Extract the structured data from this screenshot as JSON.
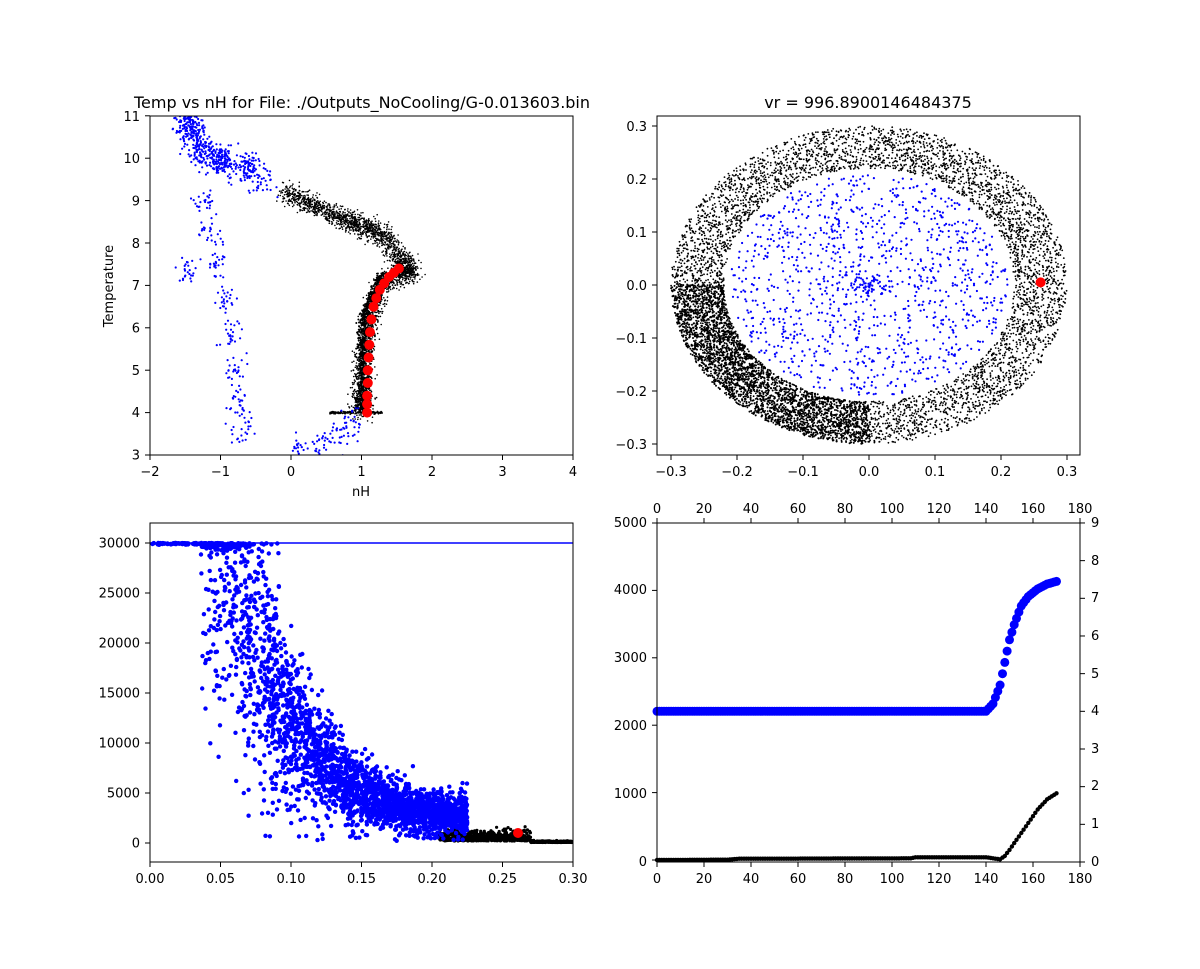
{
  "chart_data": [
    {
      "type": "scatter",
      "title": "Temp vs nH for File: ./Outputs_NoCooling/G-0.013603.bin",
      "xlabel": "nH",
      "ylabel": "Temperature",
      "xlim": [
        -2,
        4
      ],
      "ylim": [
        3,
        11
      ],
      "xticks": [
        "−2",
        "−1",
        "0",
        "1",
        "2",
        "3",
        "4"
      ],
      "yticks": [
        "3",
        "4",
        "5",
        "6",
        "7",
        "8",
        "9",
        "10",
        "11"
      ],
      "series": [
        {
          "color": "#000000",
          "marker": "tiny dots",
          "description_points": [
            [
              -0.1,
              9.2
            ],
            [
              0.3,
              8.9
            ],
            [
              0.7,
              8.6
            ],
            [
              1.0,
              8.4
            ],
            [
              1.3,
              8.2
            ],
            [
              1.55,
              7.6
            ],
            [
              1.7,
              7.3
            ],
            [
              1.3,
              7.1
            ],
            [
              1.15,
              6.5
            ],
            [
              1.05,
              5.5
            ],
            [
              1.0,
              4.5
            ],
            [
              1.0,
              4.0
            ]
          ]
        },
        {
          "color": "#0000ff",
          "marker": "small dots",
          "points": [
            [
              -1.5,
              10.9
            ],
            [
              -1.4,
              10.6
            ],
            [
              -1.3,
              10.2
            ],
            [
              -1.1,
              10.0
            ],
            [
              -0.9,
              9.9
            ],
            [
              -0.6,
              9.8
            ],
            [
              -0.4,
              9.4
            ],
            [
              -1.25,
              9.0
            ],
            [
              -1.15,
              8.3
            ],
            [
              -1.05,
              7.5
            ],
            [
              -0.95,
              6.7
            ],
            [
              -0.85,
              5.9
            ],
            [
              -0.8,
              5.0
            ],
            [
              -0.75,
              4.3
            ],
            [
              -0.7,
              3.6
            ],
            [
              -1.45,
              7.3
            ],
            [
              0.1,
              3.0
            ],
            [
              0.4,
              3.2
            ],
            [
              0.7,
              3.5
            ],
            [
              0.9,
              3.8
            ]
          ]
        },
        {
          "color": "#ff0000",
          "marker": "large dots",
          "points": [
            [
              1.08,
              4.0
            ],
            [
              1.08,
              4.2
            ],
            [
              1.08,
              4.4
            ],
            [
              1.09,
              4.7
            ],
            [
              1.09,
              5.0
            ],
            [
              1.1,
              5.3
            ],
            [
              1.11,
              5.6
            ],
            [
              1.12,
              5.9
            ],
            [
              1.14,
              6.2
            ],
            [
              1.17,
              6.5
            ],
            [
              1.21,
              6.7
            ],
            [
              1.26,
              6.9
            ],
            [
              1.32,
              7.05
            ],
            [
              1.39,
              7.2
            ],
            [
              1.46,
              7.3
            ],
            [
              1.53,
              7.4
            ]
          ]
        }
      ]
    },
    {
      "type": "scatter",
      "title": "vr = 996.8900146484375",
      "xlim": [
        -0.32,
        0.32
      ],
      "ylim": [
        -0.32,
        0.32
      ],
      "xticks": [
        "−0.3",
        "−0.2",
        "−0.1",
        "0.0",
        "0.1",
        "0.2",
        "0.3"
      ],
      "yticks": [
        "−0.3",
        "−0.2",
        "−0.1",
        "0.0",
        "0.1",
        "0.2",
        "0.3"
      ],
      "series": [
        {
          "color": "#000000",
          "shape": "ring",
          "r_inner": 0.22,
          "r_outer": 0.3
        },
        {
          "color": "#0000ff",
          "shape": "disk",
          "r": 0.21
        },
        {
          "color": "#ff0000",
          "points": [
            [
              0.26,
              0.005
            ]
          ]
        }
      ]
    },
    {
      "type": "scatter",
      "xlim": [
        0.0,
        0.3
      ],
      "ylim": [
        -2000,
        32000
      ],
      "xticks": [
        "0.00",
        "0.05",
        "0.10",
        "0.15",
        "0.20",
        "0.25",
        "0.30"
      ],
      "yticks": [
        "0",
        "5000",
        "10000",
        "15000",
        "20000",
        "25000",
        "30000"
      ],
      "hline": {
        "y": 30000,
        "color": "#0000ff"
      },
      "series": [
        {
          "color": "#000000",
          "description": "band near zero across x 0.21–0.30"
        },
        {
          "color": "#0000ff",
          "description": "decay from 30000 at x≈0.04 to ~2000 at x≈0.22"
        },
        {
          "color": "#ff0000",
          "points": [
            [
              0.261,
              1000
            ]
          ]
        }
      ]
    },
    {
      "type": "scatter",
      "xlim": [
        0,
        180
      ],
      "ylim_left": [
        0,
        5000
      ],
      "ylim_right": [
        0,
        9
      ],
      "xticks": [
        "0",
        "20",
        "40",
        "60",
        "80",
        "100",
        "120",
        "140",
        "160",
        "180"
      ],
      "yticks_left": [
        "0",
        "1000",
        "2000",
        "3000",
        "4000",
        "5000"
      ],
      "yticks_right": [
        "0",
        "1",
        "2",
        "3",
        "4",
        "5",
        "6",
        "7",
        "8",
        "9"
      ],
      "series": [
        {
          "color": "#0000ff",
          "axis": "right",
          "points": [
            [
              0,
              4.0
            ],
            [
              20,
              4.0
            ],
            [
              40,
              4.0
            ],
            [
              60,
              4.0
            ],
            [
              80,
              4.0
            ],
            [
              100,
              4.0
            ],
            [
              120,
              4.0
            ],
            [
              140,
              4.0
            ],
            [
              143,
              4.2
            ],
            [
              146,
              4.7
            ],
            [
              148,
              5.3
            ],
            [
              150,
              5.9
            ],
            [
              152,
              6.3
            ],
            [
              155,
              6.8
            ],
            [
              158,
              7.05
            ],
            [
              162,
              7.25
            ],
            [
              166,
              7.38
            ],
            [
              170,
              7.45
            ]
          ]
        },
        {
          "color": "#000000",
          "axis": "left",
          "points": [
            [
              0,
              0
            ],
            [
              30,
              5
            ],
            [
              35,
              20
            ],
            [
              60,
              20
            ],
            [
              108,
              25
            ],
            [
              110,
              40
            ],
            [
              140,
              40
            ],
            [
              146,
              10
            ],
            [
              148,
              60
            ],
            [
              150,
              150
            ],
            [
              154,
              350
            ],
            [
              158,
              550
            ],
            [
              162,
              750
            ],
            [
              166,
              900
            ],
            [
              170,
              990
            ]
          ]
        }
      ]
    }
  ]
}
